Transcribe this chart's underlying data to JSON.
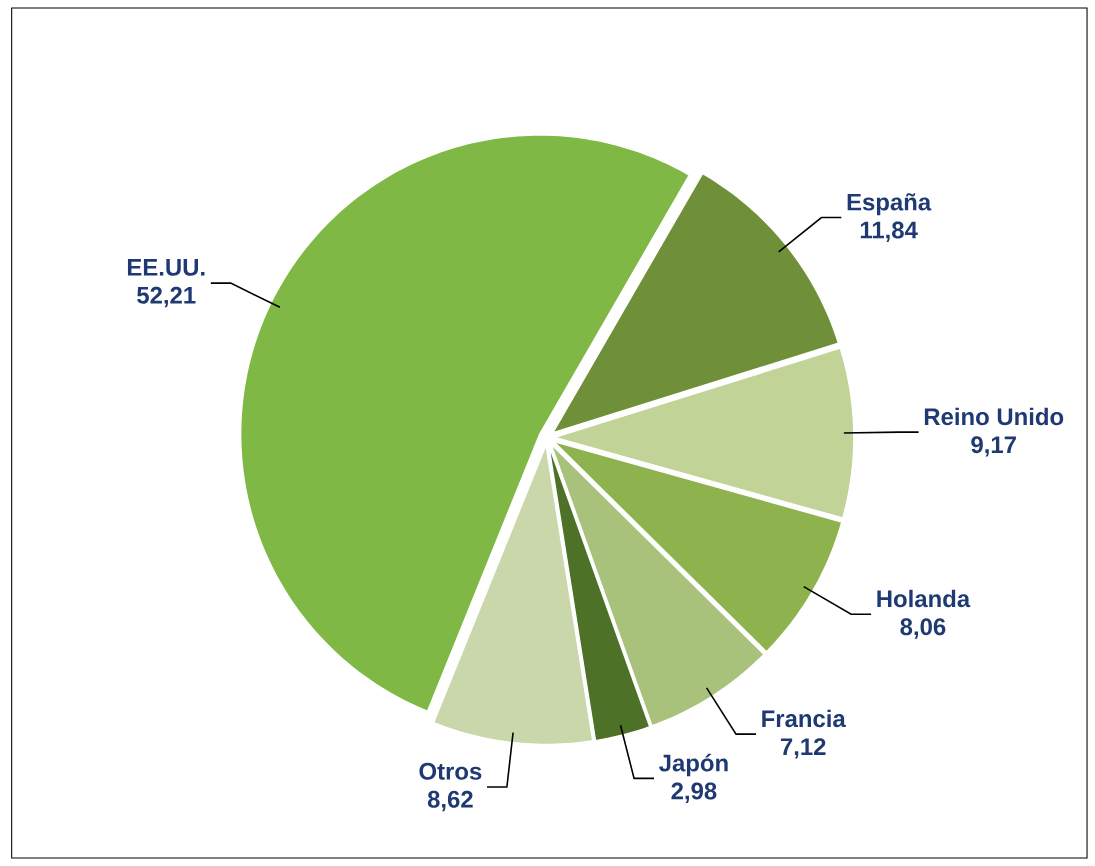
{
  "chart_data": {
    "type": "pie",
    "categories": [
      "España",
      "Reino Unido",
      "Holanda",
      "Francia",
      "Japón",
      "Otros",
      "EE.UU."
    ],
    "values": [
      11.84,
      9.17,
      8.06,
      7.12,
      2.98,
      8.62,
      52.21
    ],
    "value_labels": [
      "11,84",
      "9,17",
      "8,06",
      "7,12",
      "2,98",
      "8,62",
      "52,21"
    ],
    "colors": [
      "#6f9038",
      "#c2d398",
      "#8db24e",
      "#a9c27b",
      "#4d7227",
      "#c9d7aa",
      "#7fb845"
    ]
  }
}
